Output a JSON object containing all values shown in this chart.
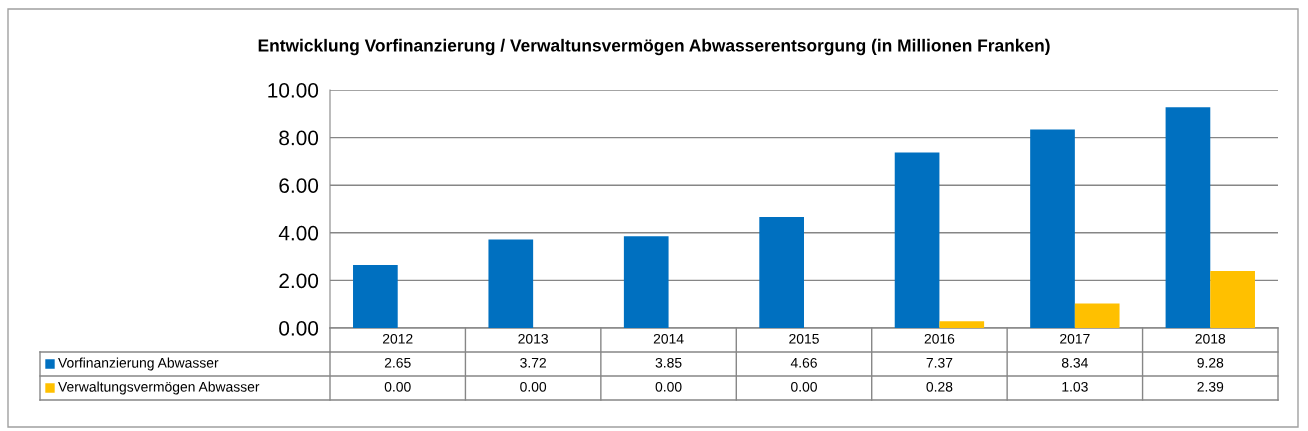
{
  "chart_data": {
    "type": "bar",
    "title": "Entwicklung Vorfinanzierung / Verwaltunsvermögen Abwasserentsorgung (in Millionen Franken)",
    "categories": [
      "2012",
      "2013",
      "2014",
      "2015",
      "2016",
      "2017",
      "2018"
    ],
    "series": [
      {
        "name": "Vorfinanzierung Abwasser",
        "color": "#0070c0",
        "values": [
          2.65,
          3.72,
          3.85,
          4.66,
          7.37,
          8.34,
          9.28
        ],
        "value_labels": [
          "2.65",
          "3.72",
          "3.85",
          "4.66",
          "7.37",
          "8.34",
          "9.28"
        ]
      },
      {
        "name": "Verwaltungsvermögen Abwasser",
        "color": "#ffc000",
        "values": [
          0,
          0,
          0,
          0,
          0.28,
          1.03,
          2.39
        ],
        "value_labels": [
          "0.00",
          "0.00",
          "0.00",
          "0.00",
          "0.28",
          "1.03",
          "2.39"
        ]
      }
    ],
    "ylim": [
      0,
      10
    ],
    "yticks": [
      {
        "value": 0,
        "label": "0.00"
      },
      {
        "value": 2,
        "label": "2.00"
      },
      {
        "value": 4,
        "label": "4.00"
      },
      {
        "value": 6,
        "label": "6.00"
      },
      {
        "value": 8,
        "label": "8.00"
      },
      {
        "value": 10,
        "label": "10.00"
      }
    ],
    "grid": "y",
    "legend": "bottom"
  }
}
